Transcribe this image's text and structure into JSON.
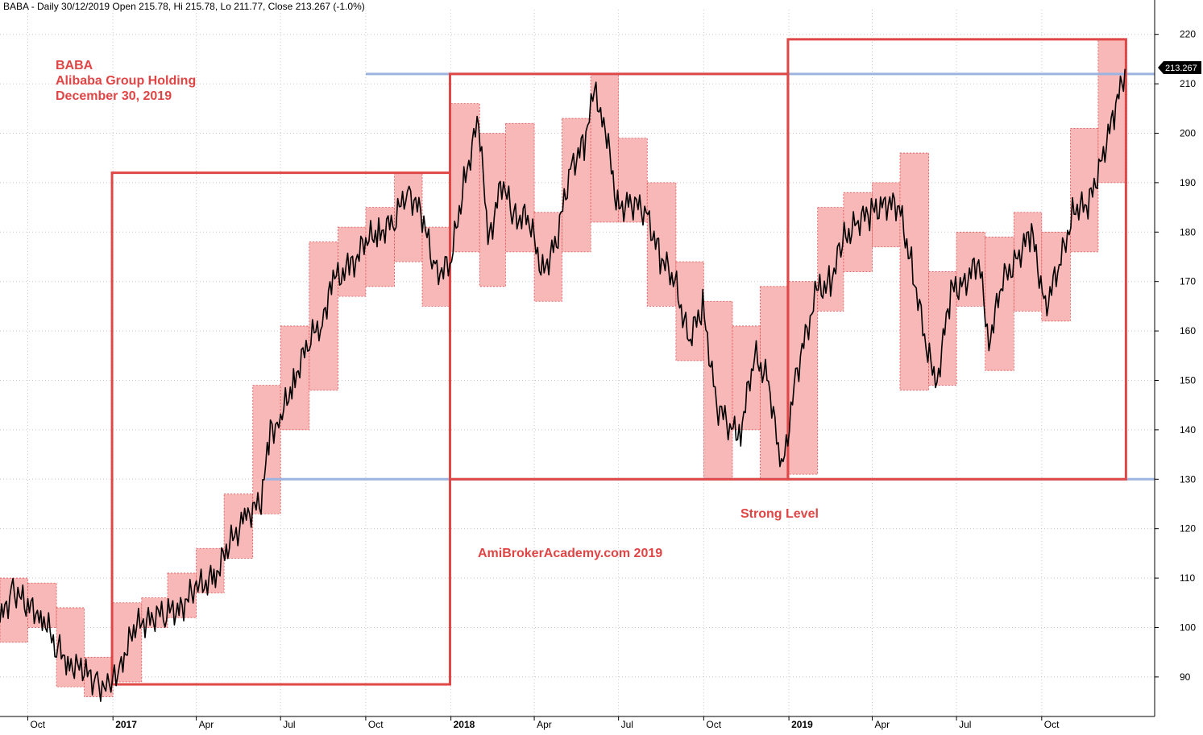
{
  "header": {
    "text": "BABA - Daily 30/12/2019 Open 215.78, Hi 215.78, Lo 211.77, Close 213.267 (-1.0%)"
  },
  "annotations": {
    "ticker": "BABA",
    "company": "Alibaba Group Holding",
    "date": "December 30, 2019",
    "watermark": "AmiBrokerAcademy.com   2019",
    "strong_level": "Strong Level"
  },
  "colors": {
    "box_outline": "#e04848",
    "box_fill": "#f9b8b8",
    "box_dash": "#e05050",
    "level_line": "#9db4e0",
    "candle": "#000000",
    "grid": "#c8c8c8",
    "price_tag_bg": "#000000",
    "price_tag_text": "#ffffff"
  },
  "chart_data": {
    "type": "line",
    "title": "BABA - Daily 30/12/2019 Open 215.78, Hi 215.78, Lo 211.77, Close 213.267 (-1.0%)",
    "xlabel": "",
    "ylabel": "",
    "ylim": [
      82,
      225
    ],
    "y_ticks": [
      90,
      100,
      110,
      120,
      130,
      140,
      150,
      160,
      170,
      180,
      190,
      200,
      210,
      220
    ],
    "x_range": [
      "2016-09-01",
      "2020-01-31"
    ],
    "x_ticks": [
      {
        "label": "Oct",
        "bold": false,
        "date": "2016-10-01"
      },
      {
        "label": "2017",
        "bold": true,
        "date": "2017-01-01"
      },
      {
        "label": "Apr",
        "bold": false,
        "date": "2017-04-01"
      },
      {
        "label": "Jul",
        "bold": false,
        "date": "2017-07-01"
      },
      {
        "label": "Oct",
        "bold": false,
        "date": "2017-10-01"
      },
      {
        "label": "2018",
        "bold": true,
        "date": "2018-01-01"
      },
      {
        "label": "Apr",
        "bold": false,
        "date": "2018-04-01"
      },
      {
        "label": "Jul",
        "bold": false,
        "date": "2018-07-01"
      },
      {
        "label": "Oct",
        "bold": false,
        "date": "2018-10-01"
      },
      {
        "label": "2019",
        "bold": true,
        "date": "2019-01-01"
      },
      {
        "label": "Apr",
        "bold": false,
        "date": "2019-04-01"
      },
      {
        "label": "Jul",
        "bold": false,
        "date": "2019-07-01"
      },
      {
        "label": "Oct",
        "bold": false,
        "date": "2019-10-01"
      }
    ],
    "grid": true,
    "last_close": 213.267,
    "last_close_label": "213.267",
    "series": [
      {
        "type": "line",
        "points": [
          [
            "2016-09-01",
            101
          ],
          [
            "2016-09-15",
            108
          ],
          [
            "2016-10-01",
            104
          ],
          [
            "2016-10-15",
            103
          ],
          [
            "2016-11-01",
            96
          ],
          [
            "2016-11-15",
            93
          ],
          [
            "2016-12-01",
            91
          ],
          [
            "2016-12-15",
            89
          ],
          [
            "2016-12-28",
            87
          ],
          [
            "2017-01-10",
            93
          ],
          [
            "2017-01-25",
            100
          ],
          [
            "2017-02-10",
            102
          ],
          [
            "2017-02-28",
            103
          ],
          [
            "2017-03-15",
            104
          ],
          [
            "2017-04-01",
            108
          ],
          [
            "2017-04-20",
            110
          ],
          [
            "2017-05-05",
            116
          ],
          [
            "2017-05-25",
            123
          ],
          [
            "2017-06-10",
            125
          ],
          [
            "2017-06-20",
            140
          ],
          [
            "2017-07-01",
            142
          ],
          [
            "2017-07-15",
            150
          ],
          [
            "2017-08-01",
            158
          ],
          [
            "2017-08-15",
            162
          ],
          [
            "2017-08-25",
            170
          ],
          [
            "2017-09-15",
            173
          ],
          [
            "2017-10-01",
            178
          ],
          [
            "2017-10-15",
            180
          ],
          [
            "2017-11-01",
            182
          ],
          [
            "2017-11-15",
            189
          ],
          [
            "2017-12-01",
            183
          ],
          [
            "2017-12-15",
            172
          ],
          [
            "2017-12-31",
            173
          ],
          [
            "2018-01-15",
            190
          ],
          [
            "2018-01-31",
            203
          ],
          [
            "2018-02-10",
            178
          ],
          [
            "2018-02-25",
            190
          ],
          [
            "2018-03-10",
            183
          ],
          [
            "2018-03-25",
            183
          ],
          [
            "2018-04-10",
            172
          ],
          [
            "2018-04-25",
            178
          ],
          [
            "2018-05-10",
            193
          ],
          [
            "2018-05-25",
            198
          ],
          [
            "2018-06-05",
            208
          ],
          [
            "2018-06-15",
            203
          ],
          [
            "2018-06-30",
            185
          ],
          [
            "2018-07-15",
            186
          ],
          [
            "2018-07-31",
            184
          ],
          [
            "2018-08-15",
            175
          ],
          [
            "2018-08-31",
            170
          ],
          [
            "2018-09-15",
            158
          ],
          [
            "2018-09-30",
            165
          ],
          [
            "2018-10-15",
            145
          ],
          [
            "2018-10-31",
            140
          ],
          [
            "2018-11-10",
            140
          ],
          [
            "2018-11-25",
            155
          ],
          [
            "2018-12-10",
            150
          ],
          [
            "2018-12-24",
            131
          ],
          [
            "2019-01-10",
            152
          ],
          [
            "2019-01-31",
            168
          ],
          [
            "2019-02-15",
            170
          ],
          [
            "2019-02-28",
            178
          ],
          [
            "2019-03-15",
            182
          ],
          [
            "2019-03-31",
            184
          ],
          [
            "2019-04-15",
            186
          ],
          [
            "2019-04-30",
            185
          ],
          [
            "2019-05-15",
            172
          ],
          [
            "2019-05-31",
            155
          ],
          [
            "2019-06-10",
            150
          ],
          [
            "2019-06-25",
            168
          ],
          [
            "2019-07-10",
            170
          ],
          [
            "2019-07-25",
            174
          ],
          [
            "2019-08-05",
            158
          ],
          [
            "2019-08-20",
            170
          ],
          [
            "2019-09-05",
            175
          ],
          [
            "2019-09-20",
            180
          ],
          [
            "2019-10-05",
            165
          ],
          [
            "2019-10-20",
            173
          ],
          [
            "2019-11-05",
            185
          ],
          [
            "2019-11-20",
            185
          ],
          [
            "2019-12-05",
            195
          ],
          [
            "2019-12-20",
            205
          ],
          [
            "2019-12-30",
            213
          ]
        ]
      }
    ],
    "big_boxes": [
      {
        "x0": "2016-12-31",
        "x1": "2017-12-31",
        "y0": 88.5,
        "y1": 192
      },
      {
        "x0": "2017-12-31",
        "x1": "2018-12-31",
        "y0": 130,
        "y1": 212
      },
      {
        "x0": "2018-12-31",
        "x1": "2019-12-31",
        "y0": 130,
        "y1": 219
      }
    ],
    "levels": [
      {
        "y": 212,
        "x0": "2017-10-01",
        "x1": "2020-01-31"
      },
      {
        "y": 130,
        "x0": "2017-06-15",
        "x1": "2020-01-31"
      }
    ],
    "monthly_ranges": [
      [
        "2016-09-01",
        97,
        110
      ],
      [
        "2016-10-01",
        100,
        109
      ],
      [
        "2016-11-01",
        88,
        104
      ],
      [
        "2016-12-01",
        86,
        94
      ],
      [
        "2017-01-01",
        89,
        105
      ],
      [
        "2017-02-01",
        100,
        106
      ],
      [
        "2017-03-01",
        102,
        111
      ],
      [
        "2017-04-01",
        107,
        116
      ],
      [
        "2017-05-01",
        114,
        127
      ],
      [
        "2017-06-01",
        123,
        149
      ],
      [
        "2017-07-01",
        140,
        161
      ],
      [
        "2017-08-01",
        148,
        178
      ],
      [
        "2017-09-01",
        167,
        181
      ],
      [
        "2017-10-01",
        169,
        185
      ],
      [
        "2017-11-01",
        174,
        192
      ],
      [
        "2017-12-01",
        165,
        181
      ],
      [
        "2018-01-01",
        176,
        206
      ],
      [
        "2018-02-01",
        169,
        200
      ],
      [
        "2018-03-01",
        176,
        202
      ],
      [
        "2018-04-01",
        166,
        184
      ],
      [
        "2018-05-01",
        176,
        203
      ],
      [
        "2018-06-01",
        182,
        212
      ],
      [
        "2018-07-01",
        182,
        199
      ],
      [
        "2018-08-01",
        165,
        190
      ],
      [
        "2018-09-01",
        154,
        174
      ],
      [
        "2018-10-01",
        130,
        166
      ],
      [
        "2018-11-01",
        140,
        161
      ],
      [
        "2018-12-01",
        130,
        169
      ],
      [
        "2019-01-01",
        131,
        170
      ],
      [
        "2019-02-01",
        164,
        185
      ],
      [
        "2019-03-01",
        172,
        188
      ],
      [
        "2019-04-01",
        177,
        190
      ],
      [
        "2019-05-01",
        148,
        196
      ],
      [
        "2019-06-01",
        149,
        172
      ],
      [
        "2019-07-01",
        165,
        180
      ],
      [
        "2019-08-01",
        152,
        179
      ],
      [
        "2019-09-01",
        164,
        184
      ],
      [
        "2019-10-01",
        162,
        180
      ],
      [
        "2019-11-01",
        176,
        201
      ],
      [
        "2019-12-01",
        190,
        219
      ]
    ]
  }
}
